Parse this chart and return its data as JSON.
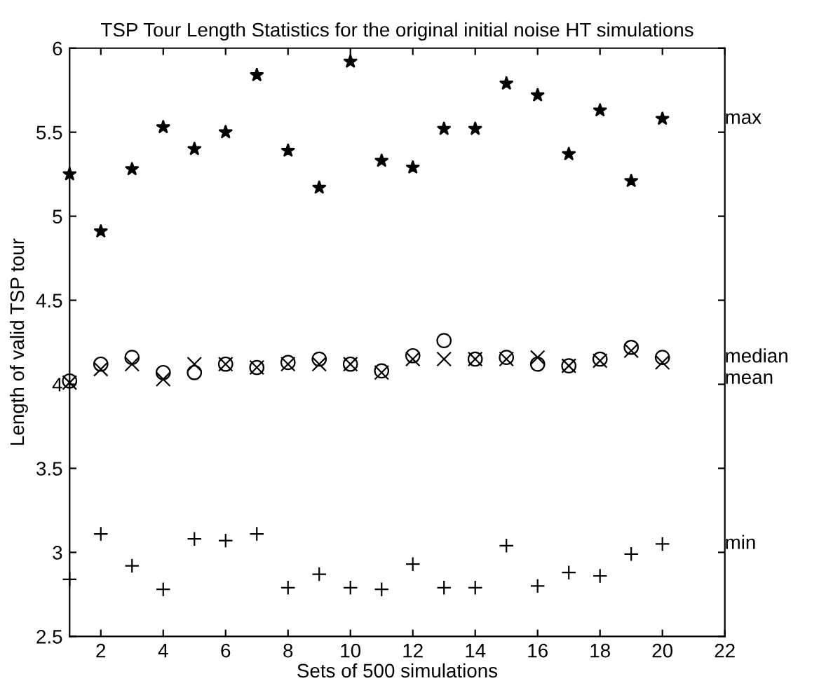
{
  "chart_data": {
    "type": "scatter",
    "title": "TSP Tour Length Statistics for the original initial noise HT simulations",
    "xlabel": "Sets of 500 simulations",
    "ylabel": "Length of valid TSP tour",
    "x": [
      1,
      2,
      3,
      4,
      5,
      6,
      7,
      8,
      9,
      10,
      11,
      12,
      13,
      14,
      15,
      16,
      17,
      18,
      19,
      20
    ],
    "series": [
      {
        "name": "max",
        "color": "#000000",
        "marker": "star",
        "values": [
          5.25,
          4.91,
          5.28,
          5.53,
          5.4,
          5.5,
          5.84,
          5.39,
          5.17,
          5.92,
          5.33,
          5.29,
          5.52,
          5.52,
          5.79,
          5.72,
          5.37,
          5.63,
          5.21,
          5.58
        ]
      },
      {
        "name": "median",
        "color": "#000000",
        "marker": "circle",
        "values": [
          4.02,
          4.12,
          4.16,
          4.07,
          4.07,
          4.12,
          4.1,
          4.13,
          4.15,
          4.12,
          4.08,
          4.17,
          4.26,
          4.15,
          4.16,
          4.12,
          4.11,
          4.15,
          4.22,
          4.16
        ]
      },
      {
        "name": "mean",
        "color": "#000000",
        "marker": "cross",
        "values": [
          4.01,
          4.09,
          4.12,
          4.03,
          4.12,
          4.12,
          4.1,
          4.12,
          4.12,
          4.12,
          4.07,
          4.15,
          4.15,
          4.15,
          4.15,
          4.16,
          4.11,
          4.14,
          4.2,
          4.13
        ]
      },
      {
        "name": "min",
        "color": "#000000",
        "marker": "plus",
        "values": [
          2.84,
          3.11,
          2.92,
          2.78,
          3.08,
          3.07,
          3.11,
          2.79,
          2.87,
          2.79,
          2.78,
          2.93,
          2.79,
          2.79,
          3.04,
          2.8,
          2.88,
          2.86,
          2.99,
          3.05
        ]
      }
    ],
    "xlim": [
      1,
      22
    ],
    "xticks": [
      2,
      4,
      6,
      8,
      10,
      12,
      14,
      16,
      18,
      20,
      22
    ],
    "ylim": [
      2.5,
      6
    ],
    "yticks": [
      2.5,
      3,
      3.5,
      4,
      4.5,
      5,
      5.5,
      6
    ],
    "grid": false,
    "legend": "right"
  }
}
